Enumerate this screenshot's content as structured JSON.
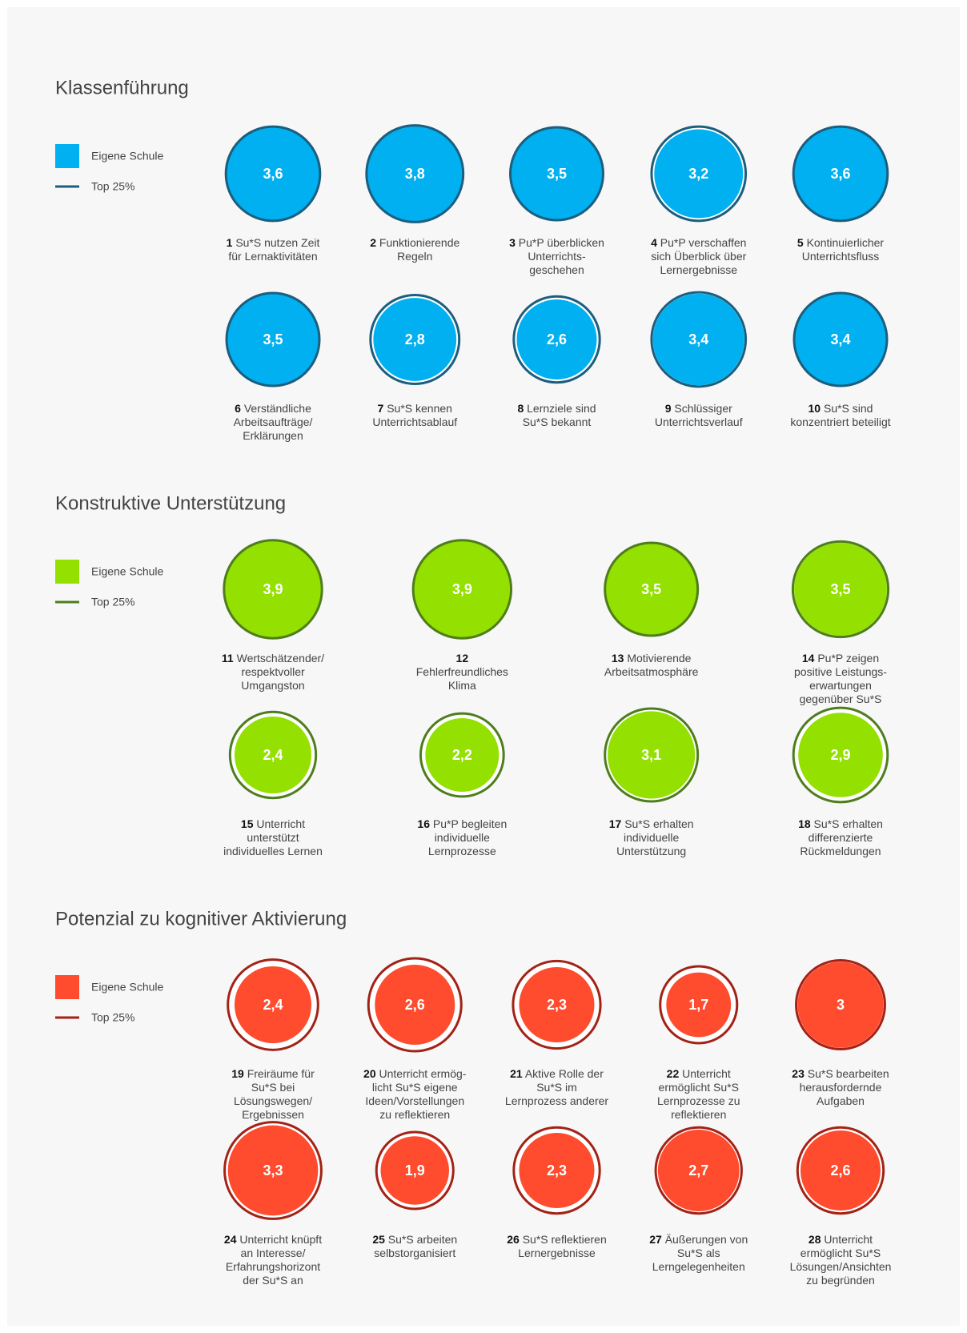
{
  "chart_data": [
    {
      "type": "bubble",
      "title": "Klassenführung",
      "legend": {
        "fill": "Eigene Schule",
        "ring": "Top 25%"
      },
      "fill_color": "#00b0f0",
      "ring_color": "#1b5e7e",
      "numbers": [
        "1",
        "2",
        "3",
        "4",
        "5",
        "6",
        "7",
        "8",
        "9",
        "10"
      ],
      "labels": [
        "Su*S nutzen Zeit\nfür Lernaktivitäten",
        "Funktionierende\nRegeln",
        "Pu*P überblicken\nUnterrichts-\ngeschehen",
        "Pu*P verschaffen\nsich Überblick über\nLernergebnisse",
        "Kontinuierlicher\nUnterrichtsfluss",
        "Verständliche\nArbeitsaufträge/\nErklärungen",
        "Su*S kennen\nUnterrichtsablauf",
        "Lernziele sind\nSu*S bekannt",
        "Schlüssiger\nUnterrichtsverlauf",
        "Su*S sind\nkonzentriert beteiligt"
      ],
      "values": [
        3.6,
        3.8,
        3.5,
        3.2,
        3.6,
        3.5,
        2.8,
        2.6,
        3.4,
        3.4
      ],
      "value_labels": [
        "3,6",
        "3,8",
        "3,5",
        "3,2",
        "3,6",
        "3,5",
        "2,8",
        "2,6",
        "3,4",
        "3,4"
      ],
      "top25": [
        3.6,
        3.8,
        3.5,
        3.6,
        3.6,
        3.5,
        3.2,
        3.0,
        3.6,
        3.5
      ]
    },
    {
      "type": "bubble",
      "title": "Konstruktive Unterstützung",
      "legend": {
        "fill": "Eigene Schule",
        "ring": "Top 25%"
      },
      "fill_color": "#94e000",
      "ring_color": "#4e7d1c",
      "numbers": [
        "11",
        "12",
        "13",
        "14",
        "15",
        "16",
        "17",
        "18"
      ],
      "labels": [
        "Wertschätzender/\nrespektvoller\nUmgangston",
        "\nFehlerfreundliches\nKlima",
        "Motivierende\nArbeitsatmosphäre",
        "Pu*P zeigen\npositive Leistungs-\nerwartungen\ngegenüber Su*S",
        "Unterricht\nunterstützt\nindividuelles Lernen",
        "Pu*P begleiten\nindividuelle\nLernprozesse",
        "Su*S erhalten\nindividuelle\nUnterstützung",
        "Su*S erhalten\ndifferenzierte\nRückmeldungen"
      ],
      "values": [
        3.9,
        3.9,
        3.5,
        3.5,
        2.4,
        2.2,
        3.1,
        2.9
      ],
      "value_labels": [
        "3,9",
        "3,9",
        "3,5",
        "3,5",
        "2,4",
        "2,2",
        "3,1",
        "2,9"
      ],
      "top25": [
        3.9,
        3.9,
        3.5,
        3.7,
        3.0,
        2.8,
        3.5,
        3.6
      ]
    },
    {
      "type": "bubble",
      "title": "Potenzial zu kognitiver Aktivierung",
      "legend": {
        "fill": "Eigene Schule",
        "ring": "Top 25%"
      },
      "fill_color": "#ff4b2e",
      "ring_color": "#a32216",
      "numbers": [
        "19",
        "20",
        "21",
        "22",
        "23",
        "24",
        "25",
        "26",
        "27",
        "28"
      ],
      "labels": [
        "Freiräume für\nSu*S bei\nLösungswegen/\nErgebnissen",
        "Unterricht ermög-\nlicht Su*S eigene\nIdeen/Vorstellungen\nzu reflektieren",
        "Aktive Rolle der\nSu*S im\nLernprozess anderer",
        "Unterricht\nermöglicht Su*S\nLernprozesse zu\nreflektieren",
        "Su*S bearbeiten\nherausfordernde\nAufgaben",
        "Unterricht knüpft\nan Interesse/\nErfahrungshorizont\nder Su*S an",
        "Su*S arbeiten\nselbstorganisiert",
        "Su*S reflektieren\nLernergebnisse",
        "Äußerungen von\nSu*S als\nLerngelegenheiten",
        "Unterricht\nermöglicht Su*S\nLösungen/Ansichten\nzu begründen"
      ],
      "values": [
        2.4,
        2.6,
        2.3,
        1.7,
        3,
        3.3,
        1.9,
        2.3,
        2.7,
        2.6
      ],
      "value_labels": [
        "2,4",
        "2,6",
        "2,3",
        "1,7",
        "3",
        "3,3",
        "1,9",
        "2,3",
        "2,7",
        "2,6"
      ],
      "top25": [
        3.3,
        3.5,
        3.1,
        2.4,
        3.2,
        3.8,
        2.4,
        3.0,
        3.0,
        3.0
      ]
    }
  ]
}
